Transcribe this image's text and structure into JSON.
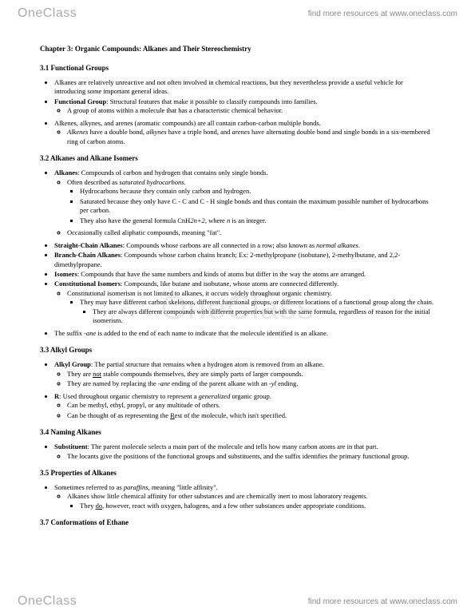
{
  "brand": {
    "part1": "One",
    "part2": "Class"
  },
  "findmore": "find more resources at www.oneclass.com",
  "chapter_title": "Chapter 3: Organic Compounds: Alkanes and Their Stereochemistry",
  "s31": {
    "title": "3.1 Functional Groups",
    "b1": "Alkanes are relatively unreactive and not often involved in chemical reactions, but they nevertheless provide a useful vehicle for introducing some important general ideas.",
    "b2a": "Functional Group",
    "b2b": ": Structural features that make it possible to classify compounds into families.",
    "b2s1": "A group of atoms within a molecule that has a characteristic chemical behavior.",
    "b3": "Alkenes, alkynes, and arenes (aromatic compounds) are all contain carbon-carbon multiple bonds.",
    "b3s1a": "Alkenes",
    "b3s1b": " have a double bond, ",
    "b3s1c": "alkynes",
    "b3s1d": " have a triple bond, and ",
    "b3s1e": "arenes",
    "b3s1f": " have alternating double bond and single bonds in a six-membered ring of carbon atoms."
  },
  "s32": {
    "title": "3.2 Alkanes and Alkane Isomers",
    "b1a": "Alkanes",
    "b1b": ": Compounds of carbon and hydrogen that contains only single bonds.",
    "b1s1a": "Often described as ",
    "b1s1b": "saturated hydrocarbons",
    "b1s1c": ".",
    "b1s1s1": "Hydrocarbons because they contain only carbon and hydrogen.",
    "b1s1s2": "Saturated because they only have C - C and C - H single bonds and thus contain the maximum possible number of hydrocarbons per carbon.",
    "b1s1s3a": "They also have the general formula CnH",
    "b1s1s3b": "2n+2",
    "b1s1s3c": ", where ",
    "b1s1s3d": "n",
    "b1s1s3e": " is an integer.",
    "b1s2": "Occasionally called aliphatic compounds, meaning \"fat\".",
    "b2a": "Straight-Chain Alkanes",
    "b2b": ": Compounds whose carbons are all connected in a row; also known as ",
    "b2c": "normal alkanes",
    "b2d": ".",
    "b3a": "Branch-Chain Alkanes",
    "b3b": ": Compounds whose carbon chains branch; Ex: 2-methylpropane (isobutane), 2-methylbutane, and 2,2-dimethylpropane.",
    "b4a": "Isomers",
    "b4b": ": Compounds that have the same numbers and kinds of atoms but differ in the way the atoms are arranged.",
    "b5a": "Constitutional Isomers",
    "b5b": ": Compounds, like butane and isobutane, whose atoms are connected differently.",
    "b5s1": "Constitutional isomerism is not limited to alkanes, it occurs widely throughout organic chemistry.",
    "b5s1s1": "They may have different carbon skeletons, different functional groups, or different locations of a functional group along the chain.",
    "b5s1s1s1": "They are always different compounds with different properties but with the same formula, regardless of reason for the initial isomerism.",
    "b6a": "The suffix ",
    "b6b": "-ane",
    "b6c": " is added to the end of each name to indicate that the molecule identified is an alkane."
  },
  "s33": {
    "title": "3.3 Alkyl Groups",
    "b1a": "Alkyl Group",
    "b1b": ": The partial structure that remains when a hydrogen atom is removed from an alkane.",
    "b1s1a": "They are ",
    "b1s1b": "not",
    "b1s1c": " stable compounds themselves, they are simply parts of larger compounds.",
    "b1s2a": "They are named by replacing the ",
    "b1s2b": "-ane",
    "b1s2c": " ending of the parent alkane with an ",
    "b1s2d": "-yl",
    "b1s2e": " ending.",
    "b2a": "R",
    "b2b": ": Used throughout organic chemistry to represent a ",
    "b2c": "generalized",
    "b2d": " organic group.",
    "b2s1": "Can be methyl, ethyl, propyl, or any multitude of others.",
    "b2s2a": "Can be thought of as representing the ",
    "b2s2b": "R",
    "b2s2c": "est of the molecule, which isn't specified."
  },
  "s34": {
    "title": "3.4 Naming Alkanes",
    "b1a": "Substituent",
    "b1b": ": The parent molecule selects a main part of the molecule and tells how many carbon atoms are in that part.",
    "b1s1": "The locants give the positions of the functional groups and substituents, and the suffix identifies the primary functional group."
  },
  "s35": {
    "title": "3.5 Properties of Alkanes",
    "b1a": "Sometimes referred to as ",
    "b1b": "paraffins",
    "b1c": ", meaning \"little affinity\".",
    "b1s1": "Alkanes show little chemical affinity for other substances and are chemically inert to most laboratory reagents.",
    "b1s1s1a": "They ",
    "b1s1s1b": "do",
    "b1s1s1c": ", however, react with oxygen, halogens, and a few other substances under appropriate conditions."
  },
  "s37": {
    "title": "3.7 Conformations of Ethane"
  }
}
